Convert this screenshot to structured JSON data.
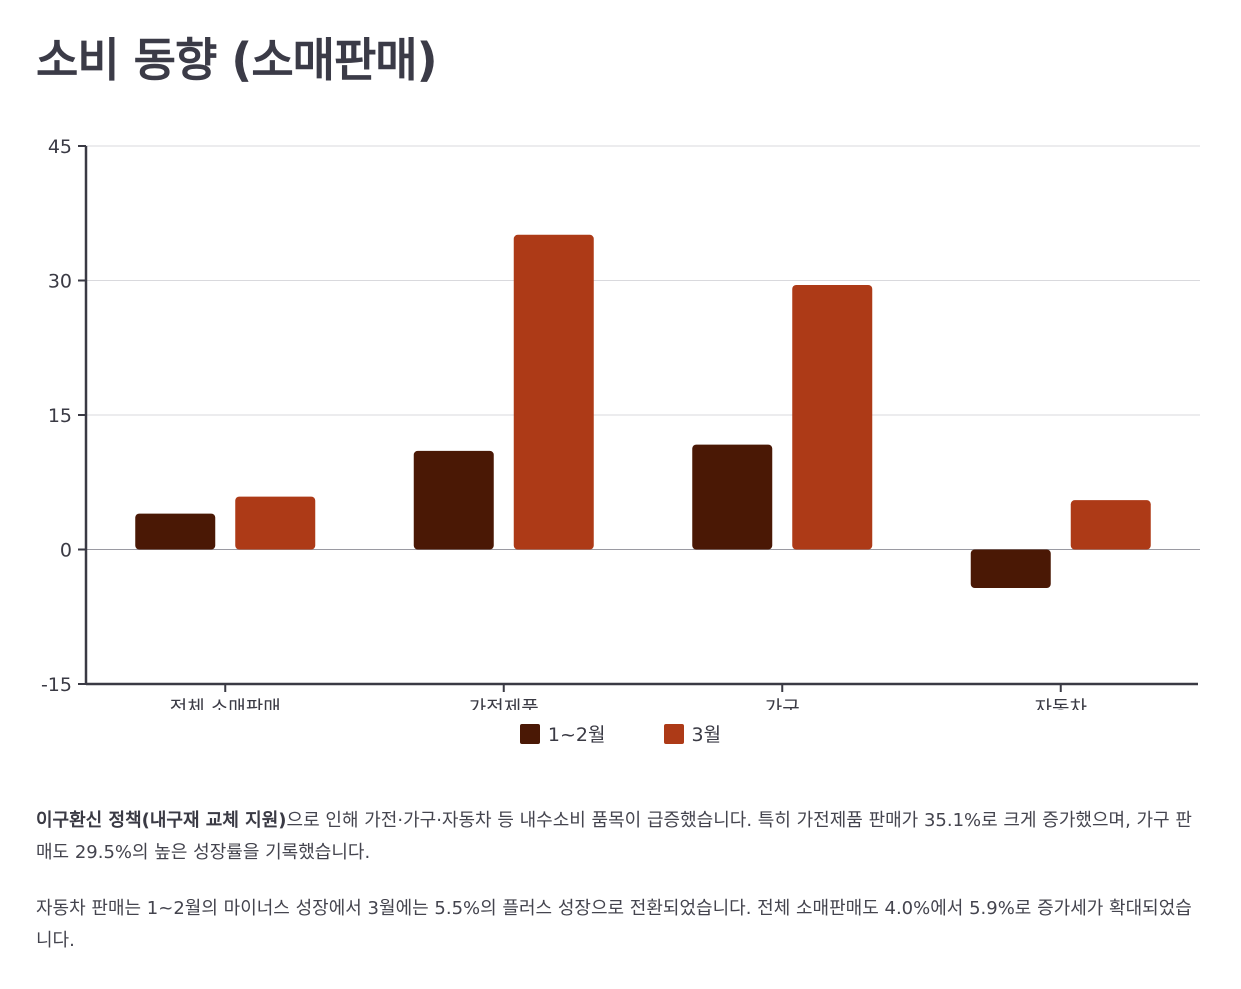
{
  "title": "소비 동향 (소매판매)",
  "chart_data": {
    "type": "bar",
    "categories": [
      "전체 소매판매",
      "가전제품",
      "가구",
      "자동차"
    ],
    "series": [
      {
        "name": "1~2월",
        "values": [
          4.0,
          11.0,
          11.7,
          -4.3
        ],
        "color": "#4a1805"
      },
      {
        "name": "3월",
        "values": [
          5.9,
          35.1,
          29.5,
          5.5
        ],
        "color": "#ad3a17"
      }
    ],
    "ylim": [
      -15,
      45
    ],
    "yticks": [
      "45",
      "30",
      "15",
      "0",
      "-15"
    ],
    "grid": true,
    "legend_position": "bottom"
  },
  "description": {
    "p1_bold": "이구환신 정책(내구재 교체 지원)",
    "p1_rest": "으로 인해 가전·가구·자동차 등 내수소비 품목이 급증했습니다. 특히 가전제품 판매가 35.1%로 크게 증가했으며, 가구 판매도 29.5%의 높은 성장률을 기록했습니다.",
    "p2": "자동차 판매는 1~2월의 마이너스 성장에서 3월에는 5.5%의 플러스 성장으로 전환되었습니다. 전체 소매판매도 4.0%에서 5.9%로 증가세가 확대되었습니다."
  }
}
